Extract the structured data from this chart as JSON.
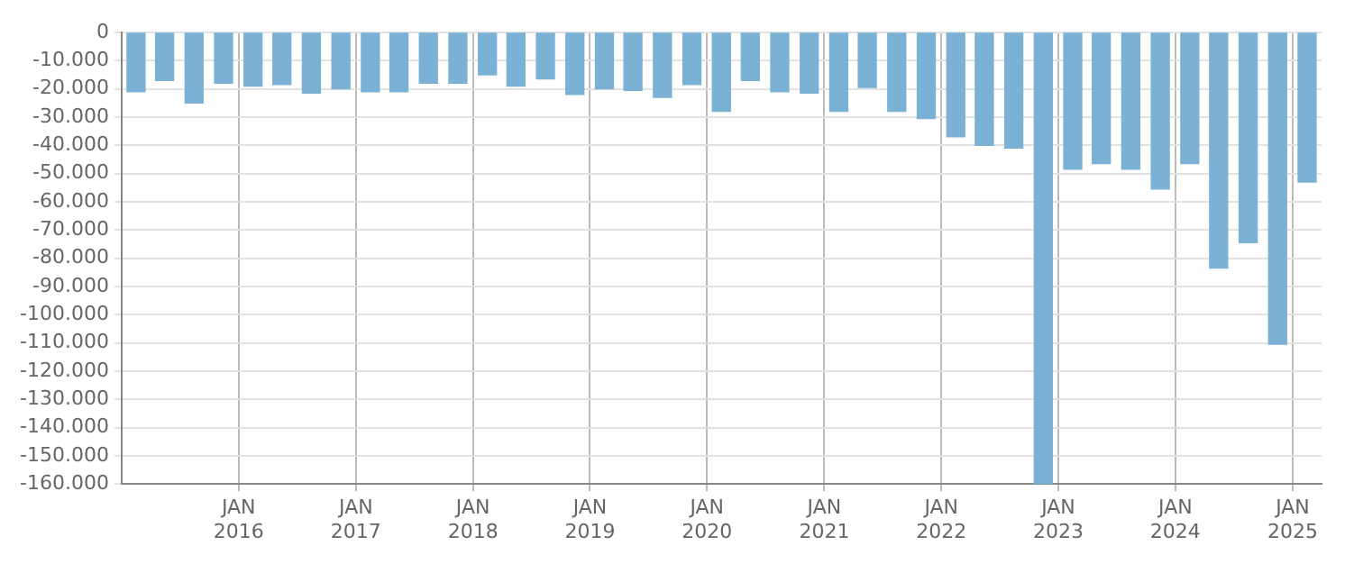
{
  "chart_data": {
    "type": "bar",
    "color": "#7ab1d4",
    "grid": true,
    "x": [
      "2015-02-15",
      "2015-05-15",
      "2015-08-15",
      "2015-11-15",
      "2016-02-15",
      "2016-05-15",
      "2016-08-15",
      "2016-11-15",
      "2017-02-15",
      "2017-05-15",
      "2017-08-15",
      "2017-11-15",
      "2018-02-15",
      "2018-05-15",
      "2018-08-15",
      "2018-11-15",
      "2019-02-15",
      "2019-05-15",
      "2019-08-15",
      "2019-11-15",
      "2020-02-15",
      "2020-05-15",
      "2020-08-15",
      "2020-11-15",
      "2021-02-15",
      "2021-05-15",
      "2021-08-15",
      "2021-11-15",
      "2022-02-15",
      "2022-05-15",
      "2022-08-15",
      "2022-11-15",
      "2023-02-15",
      "2023-05-15",
      "2023-08-15",
      "2023-11-15",
      "2024-02-15",
      "2024-05-15",
      "2024-08-15",
      "2024-11-15",
      "2025-02-15"
    ],
    "values": [
      -21000,
      -17000,
      -25000,
      -18000,
      -19000,
      -18500,
      -21500,
      -20000,
      -21000,
      -21000,
      -18000,
      -18000,
      -15000,
      -19000,
      -16500,
      -22000,
      -20000,
      -20500,
      -23000,
      -18500,
      -28000,
      -17000,
      -21000,
      -21500,
      -28000,
      -19500,
      -28000,
      -30500,
      -37000,
      -40000,
      -41000,
      -160000,
      -48500,
      -46500,
      -48500,
      -55500,
      -46500,
      -83500,
      -74500,
      -110500,
      -53000
    ],
    "xlim": [
      "2015-01",
      "2025-04"
    ],
    "xticks": [
      {
        "value": "2016-01",
        "label": "JAN 2016"
      },
      {
        "value": "2017-01",
        "label": "JAN 2017"
      },
      {
        "value": "2018-01",
        "label": "JAN 2018"
      },
      {
        "value": "2019-01",
        "label": "JAN 2019"
      },
      {
        "value": "2020-01",
        "label": "JAN 2020"
      },
      {
        "value": "2021-01",
        "label": "JAN 2021"
      },
      {
        "value": "2022-01",
        "label": "JAN 2022"
      },
      {
        "value": "2023-01",
        "label": "JAN 2023"
      },
      {
        "value": "2024-01",
        "label": "JAN 2024"
      },
      {
        "value": "2025-01",
        "label": "JAN 2025"
      }
    ],
    "ylim": [
      -160000,
      0
    ],
    "yticks": [
      0,
      {
        "value": -10000,
        "label": "-10.000"
      },
      {
        "value": -20000,
        "label": "-20.000"
      },
      {
        "value": -30000,
        "label": "-30.000"
      },
      {
        "value": -40000,
        "label": "-40.000"
      },
      {
        "value": -50000,
        "label": "-50.000"
      },
      {
        "value": -60000,
        "label": "-60.000"
      },
      {
        "value": -70000,
        "label": "-70.000"
      },
      {
        "value": -80000,
        "label": "-80.000"
      },
      {
        "value": -90000,
        "label": "-90.000"
      },
      {
        "value": -100000,
        "label": "-100.000"
      },
      {
        "value": -110000,
        "label": "-110.000"
      },
      {
        "value": -120000,
        "label": "-120.000"
      },
      {
        "value": -130000,
        "label": "-130.000"
      },
      {
        "value": -140000,
        "label": "-140.000"
      },
      {
        "value": -150000,
        "label": "-150.000"
      },
      {
        "value": -160000,
        "label": "-160.000"
      }
    ]
  }
}
